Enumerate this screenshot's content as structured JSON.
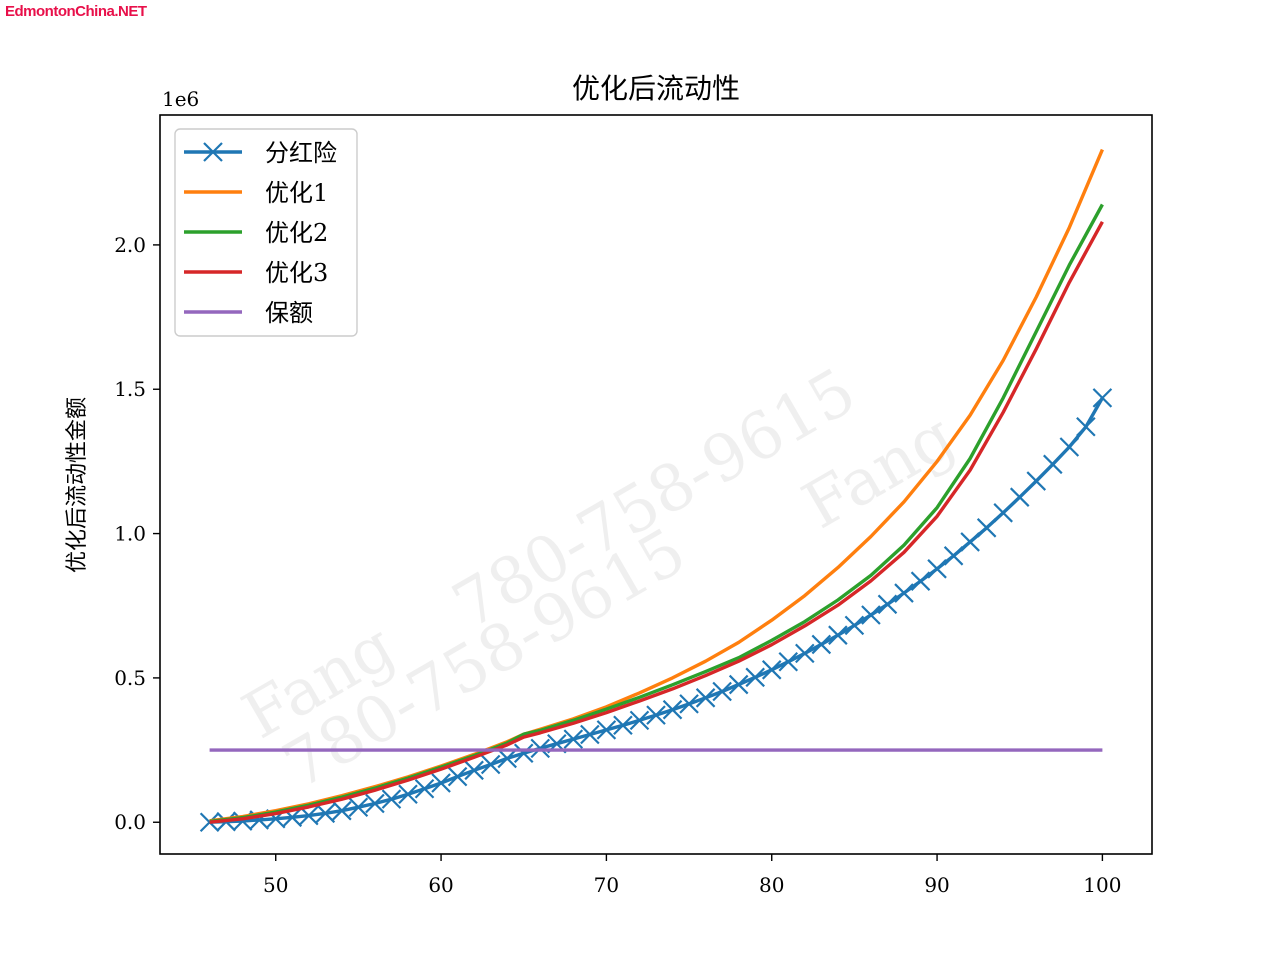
{
  "site_mark": "EdmontonChina.NET",
  "watermarks": [
    "780-758-9615",
    "Fang",
    "780-758-9615",
    "Fang"
  ],
  "colors": {
    "div_insurance": "#1f77b4",
    "opt1": "#ff7f0e",
    "opt2": "#2ca02c",
    "opt3": "#d62728",
    "guaranteed": "#9467bd"
  },
  "chart_data": {
    "type": "line",
    "title": "优化后流动性",
    "xlabel": "",
    "ylabel": "优化后流动性金额",
    "y_offset_label": "1e6",
    "xlim": [
      43,
      103
    ],
    "ylim": [
      -0.11,
      2.45
    ],
    "x_ticks": [
      50,
      60,
      70,
      80,
      90,
      100
    ],
    "x_tick_labels": [
      "50",
      "60",
      "70",
      "80",
      "90",
      "100"
    ],
    "y_ticks": [
      0.0,
      0.5,
      1.0,
      1.5,
      2.0
    ],
    "y_tick_labels": [
      "0.0",
      "0.5",
      "1.0",
      "1.5",
      "2.0"
    ],
    "legend": {
      "placement": "top-left"
    },
    "grid": false,
    "series": [
      {
        "name": "分红险",
        "marker": "x",
        "x": [
          46,
          47,
          48,
          49,
          50,
          51,
          52,
          53,
          54,
          55,
          56,
          57,
          58,
          59,
          60,
          61,
          62,
          63,
          64,
          65,
          66,
          67,
          68,
          69,
          70,
          71,
          72,
          73,
          74,
          75,
          76,
          77,
          78,
          79,
          80,
          81,
          82,
          83,
          84,
          85,
          86,
          87,
          88,
          89,
          90,
          91,
          92,
          93,
          94,
          95,
          96,
          97,
          98,
          99,
          100
        ],
        "values": [
          0.0,
          0.002,
          0.004,
          0.008,
          0.012,
          0.017,
          0.023,
          0.031,
          0.04,
          0.052,
          0.065,
          0.08,
          0.097,
          0.116,
          0.136,
          0.158,
          0.18,
          0.2,
          0.221,
          0.239,
          0.256,
          0.272,
          0.288,
          0.304,
          0.32,
          0.336,
          0.353,
          0.371,
          0.39,
          0.41,
          0.431,
          0.453,
          0.477,
          0.502,
          0.528,
          0.556,
          0.585,
          0.616,
          0.648,
          0.682,
          0.718,
          0.755,
          0.794,
          0.835,
          0.878,
          0.923,
          0.971,
          1.02,
          1.072,
          1.126,
          1.182,
          1.24,
          1.3,
          1.37,
          1.47
        ]
      },
      {
        "name": "优化1",
        "x": [
          46,
          48,
          50,
          52,
          54,
          56,
          58,
          60,
          62,
          64,
          65,
          66,
          68,
          70,
          72,
          74,
          76,
          78,
          80,
          82,
          84,
          86,
          88,
          90,
          92,
          94,
          96,
          98,
          100
        ],
        "values": [
          0.005,
          0.02,
          0.04,
          0.064,
          0.092,
          0.123,
          0.157,
          0.195,
          0.235,
          0.279,
          0.305,
          0.322,
          0.358,
          0.4,
          0.448,
          0.5,
          0.558,
          0.623,
          0.7,
          0.785,
          0.882,
          0.99,
          1.11,
          1.25,
          1.41,
          1.6,
          1.82,
          2.06,
          2.33
        ]
      },
      {
        "name": "优化2",
        "x": [
          46,
          48,
          50,
          52,
          54,
          56,
          58,
          60,
          62,
          64,
          65,
          66,
          68,
          70,
          72,
          74,
          76,
          78,
          80,
          82,
          84,
          86,
          88,
          90,
          92,
          94,
          96,
          98,
          100
        ],
        "values": [
          0.003,
          0.016,
          0.035,
          0.059,
          0.087,
          0.118,
          0.153,
          0.191,
          0.231,
          0.275,
          0.305,
          0.318,
          0.353,
          0.392,
          0.433,
          0.476,
          0.522,
          0.57,
          0.63,
          0.695,
          0.77,
          0.855,
          0.96,
          1.09,
          1.26,
          1.47,
          1.7,
          1.93,
          2.14
        ]
      },
      {
        "name": "优化3",
        "x": [
          46,
          48,
          50,
          52,
          54,
          56,
          58,
          60,
          62,
          64,
          65,
          66,
          68,
          70,
          72,
          74,
          76,
          78,
          80,
          82,
          84,
          86,
          88,
          90,
          92,
          94,
          96,
          98,
          100
        ],
        "values": [
          0.0,
          0.012,
          0.03,
          0.053,
          0.08,
          0.111,
          0.146,
          0.184,
          0.225,
          0.268,
          0.295,
          0.31,
          0.343,
          0.38,
          0.42,
          0.462,
          0.508,
          0.558,
          0.615,
          0.68,
          0.752,
          0.836,
          0.935,
          1.06,
          1.22,
          1.42,
          1.64,
          1.87,
          2.08
        ]
      },
      {
        "name": "保额",
        "x": [
          46,
          100
        ],
        "values": [
          0.25,
          0.25
        ]
      }
    ]
  }
}
